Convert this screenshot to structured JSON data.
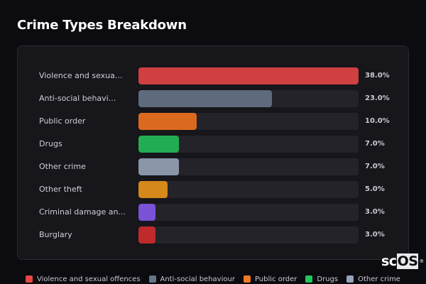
{
  "title": "Crime Types Breakdown",
  "chart_data": {
    "type": "bar",
    "orientation": "horizontal",
    "title": "Crime Types Breakdown",
    "categories": [
      "Violence and sexual offences",
      "Anti-social behaviour",
      "Public order",
      "Drugs",
      "Other crime",
      "Other theft",
      "Criminal damage and arson",
      "Burglary"
    ],
    "display_labels": [
      "Violence and sexua...",
      "Anti-social behavi...",
      "Public order",
      "Drugs",
      "Other crime",
      "Other theft",
      "Criminal damage an...",
      "Burglary"
    ],
    "values": [
      38.0,
      23.0,
      10.0,
      7.0,
      7.0,
      5.0,
      3.0,
      3.0
    ],
    "value_labels": [
      "38.0%",
      "23.0%",
      "10.0%",
      "7.0%",
      "7.0%",
      "5.0%",
      "3.0%",
      "3.0%"
    ],
    "colors": [
      "#d14040",
      "#5f6b7d",
      "#dc6a1e",
      "#22ad55",
      "#8a96a8",
      "#d4891a",
      "#7b52d6",
      "#c02a2a"
    ],
    "unit": "%",
    "xlabel": "",
    "ylabel": "",
    "xlim": [
      0,
      38
    ],
    "grid": false,
    "legend_position": "bottom"
  },
  "legend": [
    {
      "label": "Violence and sexual offences",
      "color": "#e84545"
    },
    {
      "label": "Anti-social behaviour",
      "color": "#64748b"
    },
    {
      "label": "Public order",
      "color": "#f07a24"
    },
    {
      "label": "Drugs",
      "color": "#22c55e"
    },
    {
      "label": "Other crime",
      "color": "#94a3b8"
    }
  ],
  "watermark": {
    "sc": "sc",
    "os": "OS",
    "reg": "®"
  }
}
